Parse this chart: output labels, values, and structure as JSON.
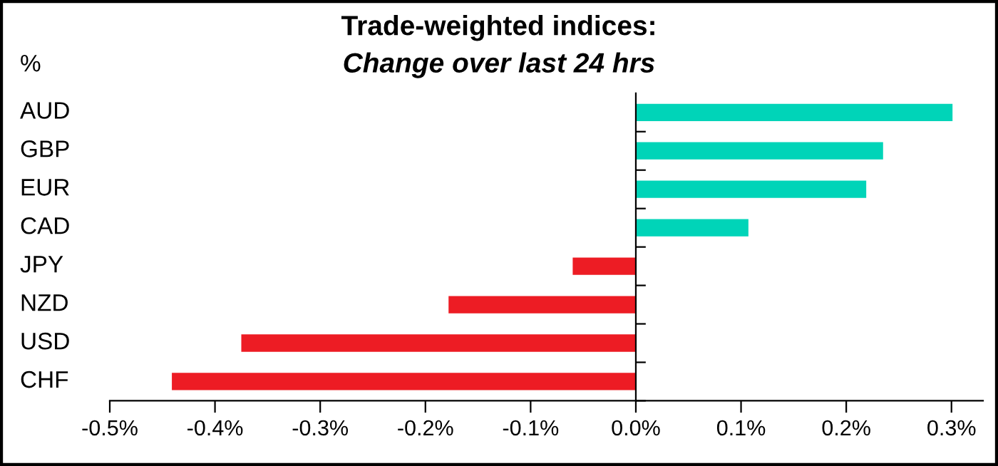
{
  "chart_data": {
    "type": "bar",
    "orientation": "horizontal",
    "title": "Trade-weighted indices:",
    "subtitle": "Change over last 24 hrs",
    "ylabel": "%",
    "categories": [
      "AUD",
      "GBP",
      "EUR",
      "CAD",
      "JPY",
      "NZD",
      "USD",
      "CHF"
    ],
    "values": [
      0.301,
      0.235,
      0.219,
      0.107,
      -0.06,
      -0.178,
      -0.375,
      -0.441
    ],
    "colors": [
      "#00d4b8",
      "#00d4b8",
      "#00d4b8",
      "#00d4b8",
      "#ed1c24",
      "#ed1c24",
      "#ed1c24",
      "#ed1c24"
    ],
    "xlim": [
      -0.5,
      0.33
    ],
    "xticks": [
      {
        "value": -0.5,
        "label": "-0.5%"
      },
      {
        "value": -0.4,
        "label": "-0.4%"
      },
      {
        "value": -0.3,
        "label": "-0.3%"
      },
      {
        "value": -0.2,
        "label": "-0.2%"
      },
      {
        "value": -0.1,
        "label": "-0.1%"
      },
      {
        "value": 0,
        "label": "0.0%"
      },
      {
        "value": 0.1,
        "label": "0.1%"
      },
      {
        "value": 0.2,
        "label": "0.2%"
      },
      {
        "value": 0.3,
        "label": "0.3%"
      }
    ],
    "legend": false
  }
}
